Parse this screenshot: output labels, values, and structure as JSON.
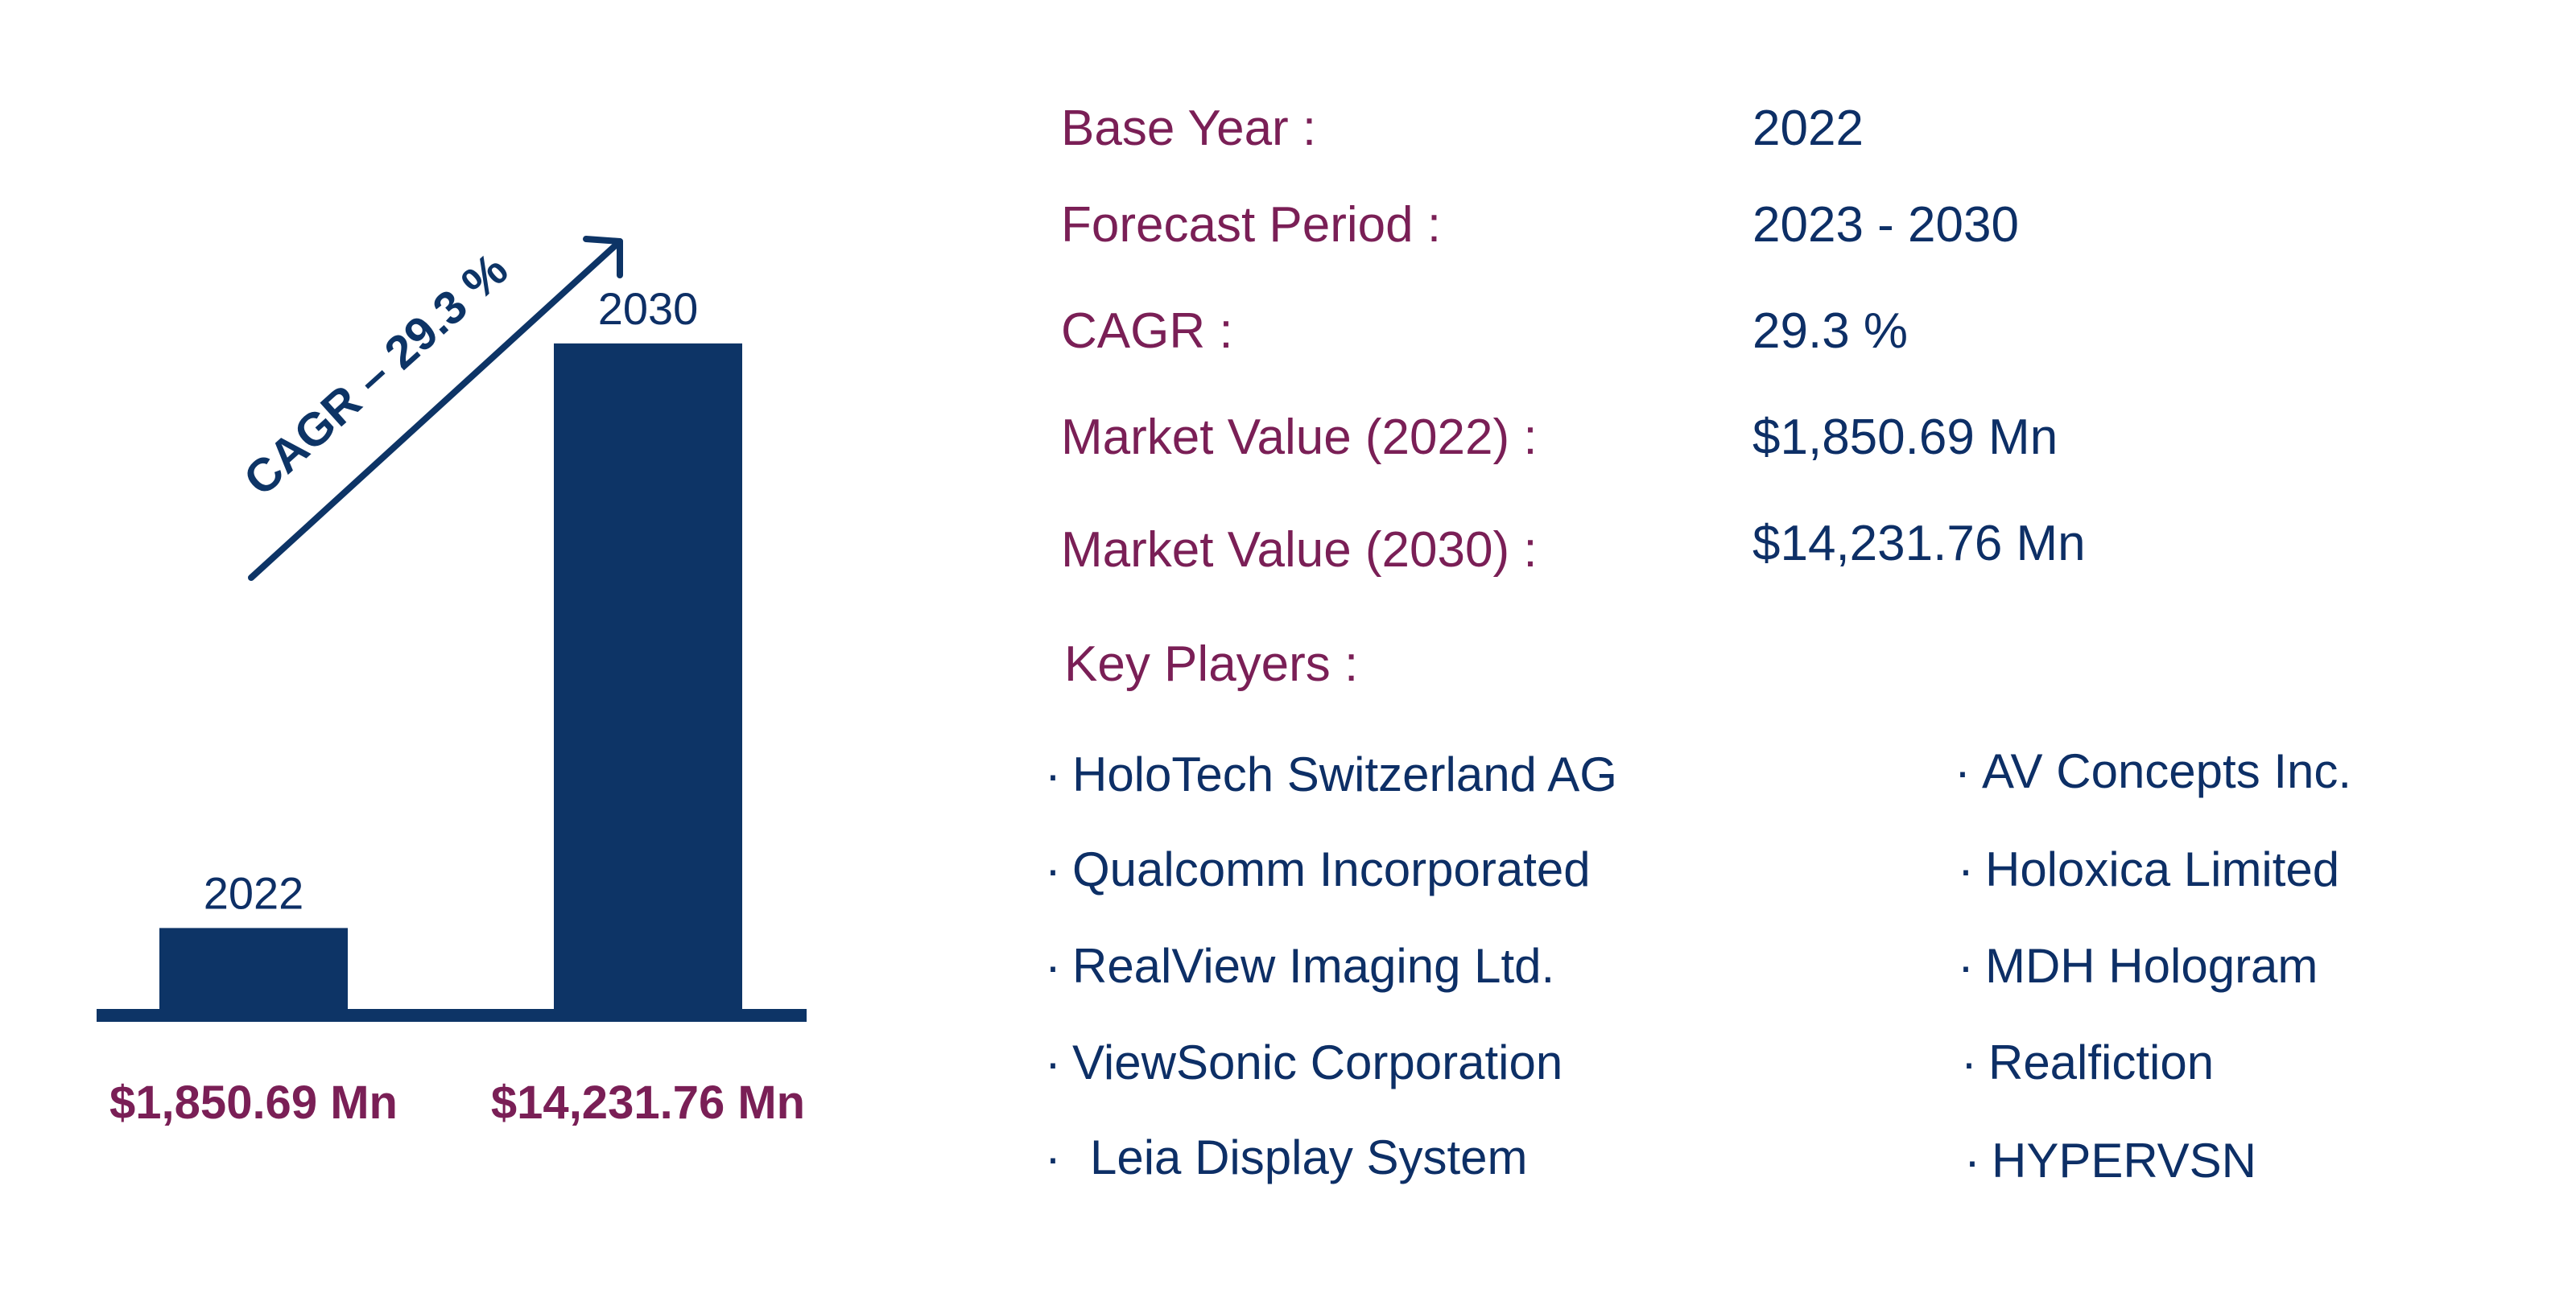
{
  "colors": {
    "bar": "#0d3466",
    "label_primary": "#7a1f56",
    "text_dark": "#0d2f66",
    "background": "#ffffff"
  },
  "chart_data": {
    "type": "bar",
    "categories": [
      "2022",
      "2030"
    ],
    "values": [
      1850.69,
      14231.76
    ],
    "value_labels": [
      "$1,850.69 Mn",
      "$14,231.76 Mn"
    ],
    "annotation": "CAGR – 29.3 %",
    "ylim": [
      0,
      15200
    ],
    "grid": false,
    "legend": "none"
  },
  "info": {
    "rows": [
      {
        "label": "Base Year :",
        "value": "2022"
      },
      {
        "label": "Forecast Period :",
        "value": "2023 - 2030"
      },
      {
        "label": "CAGR :",
        "value": "29.3 %"
      },
      {
        "label": "Market Value (2022) :",
        "value": "$1,850.69 Mn"
      },
      {
        "label": "Market Value (2030) :",
        "value": "$14,231.76 Mn"
      }
    ],
    "key_players_label": "Key Players :"
  },
  "players": {
    "bullet": "·",
    "left": [
      "HoloTech Switzerland AG",
      "Qualcomm Incorporated",
      "RealView Imaging Ltd.",
      "ViewSonic Corporation",
      "Leia Display System"
    ],
    "right": [
      "AV Concepts Inc.",
      "Holoxica Limited",
      "MDH Hologram",
      "Realfiction",
      "HYPERVSN"
    ]
  }
}
